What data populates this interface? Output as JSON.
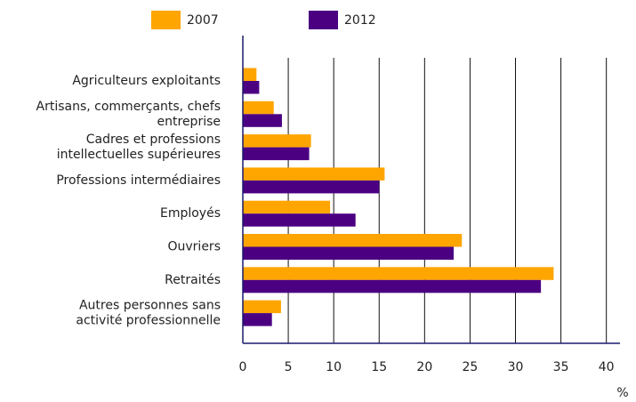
{
  "chart_data": {
    "type": "bar",
    "orientation": "horizontal",
    "categories": [
      [
        "Agriculteurs exploitants"
      ],
      [
        "Artisans, commerçants, chefs",
        "entreprise"
      ],
      [
        "Cadres et professions",
        "intellectuelles supérieures"
      ],
      [
        "Professions intermédiaires"
      ],
      [
        "Employés"
      ],
      [
        "Ouvriers"
      ],
      [
        "Retraités"
      ],
      [
        "Autres personnes sans",
        "activité professionnelle"
      ]
    ],
    "series": [
      {
        "name": "2007",
        "color": "#ffa500",
        "values": [
          1.5,
          3.4,
          7.5,
          15.6,
          9.6,
          24.1,
          34.2,
          4.2
        ]
      },
      {
        "name": "2012",
        "color": "#4b0082",
        "values": [
          1.8,
          4.3,
          7.3,
          15.0,
          12.4,
          23.2,
          32.8,
          3.2
        ]
      }
    ],
    "xlabel": "%",
    "xlim": [
      0,
      41.5
    ],
    "xticks": [
      0,
      5,
      10,
      15,
      20,
      25,
      30,
      35,
      40
    ],
    "grid": true,
    "legend": "top"
  }
}
